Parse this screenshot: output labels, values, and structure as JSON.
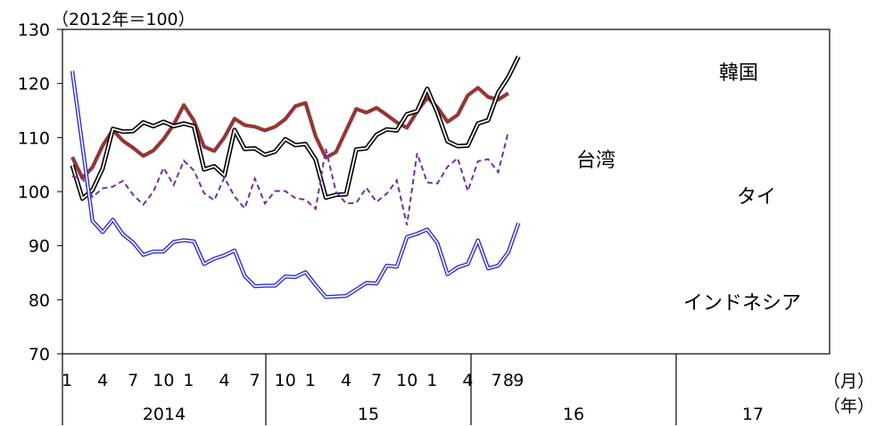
{
  "chart_data": {
    "type": "line",
    "unit_label": "（2012年＝100）",
    "month_axis_label": "（月）",
    "year_axis_label": "（年）",
    "ylim": [
      70,
      130
    ],
    "y_ticks": [
      "130",
      "120",
      "110",
      "100",
      "90",
      "80",
      "70"
    ],
    "month_ticks": [
      "1",
      "4",
      "7",
      "10",
      "1",
      "4",
      "7",
      "10",
      "1",
      "4",
      "7",
      "10",
      "1",
      "4",
      "7",
      "8",
      "9"
    ],
    "years": [
      "2014",
      "15",
      "16",
      "17"
    ],
    "grid": false,
    "colors": {
      "korea": "#943634",
      "taiwan": "#000000",
      "thailand": "#7030a0",
      "indonesia": "#2f2fd0"
    },
    "series": [
      {
        "name": "韓国",
        "key": "korea",
        "values": [
          106.4,
          102.5,
          104.5,
          108.5,
          111.4,
          109.4,
          108.1,
          106.6,
          107.6,
          109.7,
          112.4,
          116.0,
          113.1,
          108.3,
          107.5,
          110.0,
          113.5,
          112.3,
          112.0,
          111.3,
          112.0,
          113.4,
          115.8,
          116.4,
          110.2,
          106.3,
          107.3,
          111.3,
          115.3,
          114.6,
          115.5,
          114.2,
          112.8,
          111.8,
          114.8,
          117.4,
          115.6,
          112.9,
          114.2,
          117.8,
          119.2,
          117.5,
          117.0,
          118.2
        ]
      },
      {
        "name": "台湾",
        "key": "taiwan",
        "values": [
          104.9,
          98.7,
          100.3,
          104.3,
          111.6,
          111.1,
          111.2,
          112.8,
          112.1,
          112.9,
          112.1,
          112.6,
          112.1,
          104.1,
          104.7,
          103.0,
          111.4,
          107.9,
          108.0,
          106.8,
          107.4,
          109.7,
          108.6,
          108.8,
          105.9,
          98.9,
          99.4,
          99.5,
          107.8,
          108.0,
          110.5,
          111.5,
          111.3,
          114.3,
          114.9,
          119.0,
          114.6,
          109.3,
          108.4,
          108.5,
          112.6,
          113.2,
          118.3,
          121.2,
          125.0
        ]
      },
      {
        "name": "タイ",
        "key": "thailand",
        "values": [
          102.8,
          102.5,
          99.0,
          100.6,
          100.9,
          102.0,
          99.4,
          97.6,
          100.0,
          104.4,
          101.2,
          105.7,
          103.9,
          99.7,
          98.4,
          102.6,
          99.1,
          96.9,
          102.4,
          97.8,
          100.1,
          100.1,
          98.8,
          98.5,
          96.8,
          107.9,
          100.0,
          97.8,
          97.9,
          100.7,
          98.1,
          99.6,
          102.1,
          93.8,
          107.1,
          101.7,
          101.5,
          104.6,
          106.2,
          100.1,
          105.6,
          106.0,
          103.6,
          111.1
        ]
      },
      {
        "name": "インドネシア",
        "key": "indonesia",
        "values": [
          122.3,
          108.5,
          94.6,
          92.5,
          94.8,
          92.1,
          90.6,
          88.3,
          88.9,
          88.9,
          90.7,
          91.0,
          90.8,
          86.6,
          87.6,
          88.2,
          89.1,
          84.4,
          82.5,
          82.6,
          82.6,
          84.3,
          84.2,
          85.1,
          82.7,
          80.5,
          80.6,
          80.7,
          81.9,
          83.1,
          83.0,
          86.3,
          86.1,
          91.6,
          92.2,
          93.0,
          90.5,
          84.7,
          86.0,
          86.6,
          91.0,
          85.8,
          86.3,
          88.8,
          94.2
        ]
      }
    ],
    "series_labels": [
      "韓国",
      "台湾",
      "タイ",
      "インドネシア"
    ]
  }
}
